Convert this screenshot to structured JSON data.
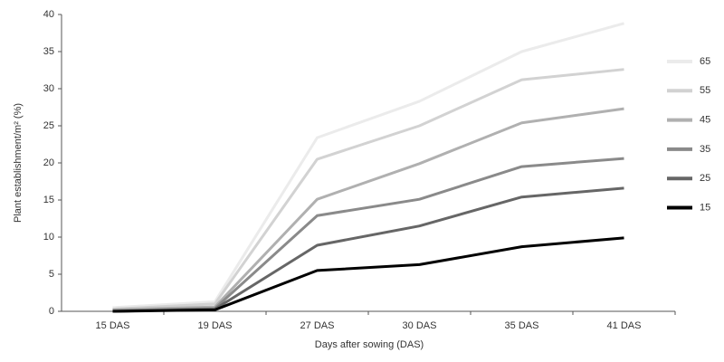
{
  "chart_data": {
    "type": "line",
    "categories": [
      "15 DAS",
      "19 DAS",
      "27 DAS",
      "30 DAS",
      "35 DAS",
      "41 DAS"
    ],
    "series": [
      {
        "name": "65",
        "color": "#ebebeb",
        "values": [
          0.5,
          1.3,
          23.4,
          28.3,
          35,
          38.8
        ]
      },
      {
        "name": "55",
        "color": "#d2d2d2",
        "values": [
          0.3,
          1.0,
          20.5,
          25,
          31.2,
          32.6
        ]
      },
      {
        "name": "45",
        "color": "#b0b0b0",
        "values": [
          0.2,
          0.6,
          15.1,
          19.9,
          25.4,
          27.3
        ]
      },
      {
        "name": "35",
        "color": "#8a8a8a",
        "values": [
          0.1,
          0.4,
          12.9,
          15.1,
          19.5,
          20.6
        ]
      },
      {
        "name": "25",
        "color": "#666666",
        "values": [
          0,
          0.3,
          8.9,
          11.5,
          15.4,
          16.6
        ]
      },
      {
        "name": "15",
        "color": "#000000",
        "values": [
          0,
          0.2,
          5.5,
          6.3,
          8.7,
          9.9
        ]
      }
    ],
    "ylim": [
      0,
      40
    ],
    "yticks": [
      0,
      5,
      10,
      15,
      20,
      25,
      30,
      35,
      40
    ],
    "x_label": "Days after sowing (DAS)",
    "y_label": "Plant establishment/m² (%)",
    "legend": "right"
  }
}
